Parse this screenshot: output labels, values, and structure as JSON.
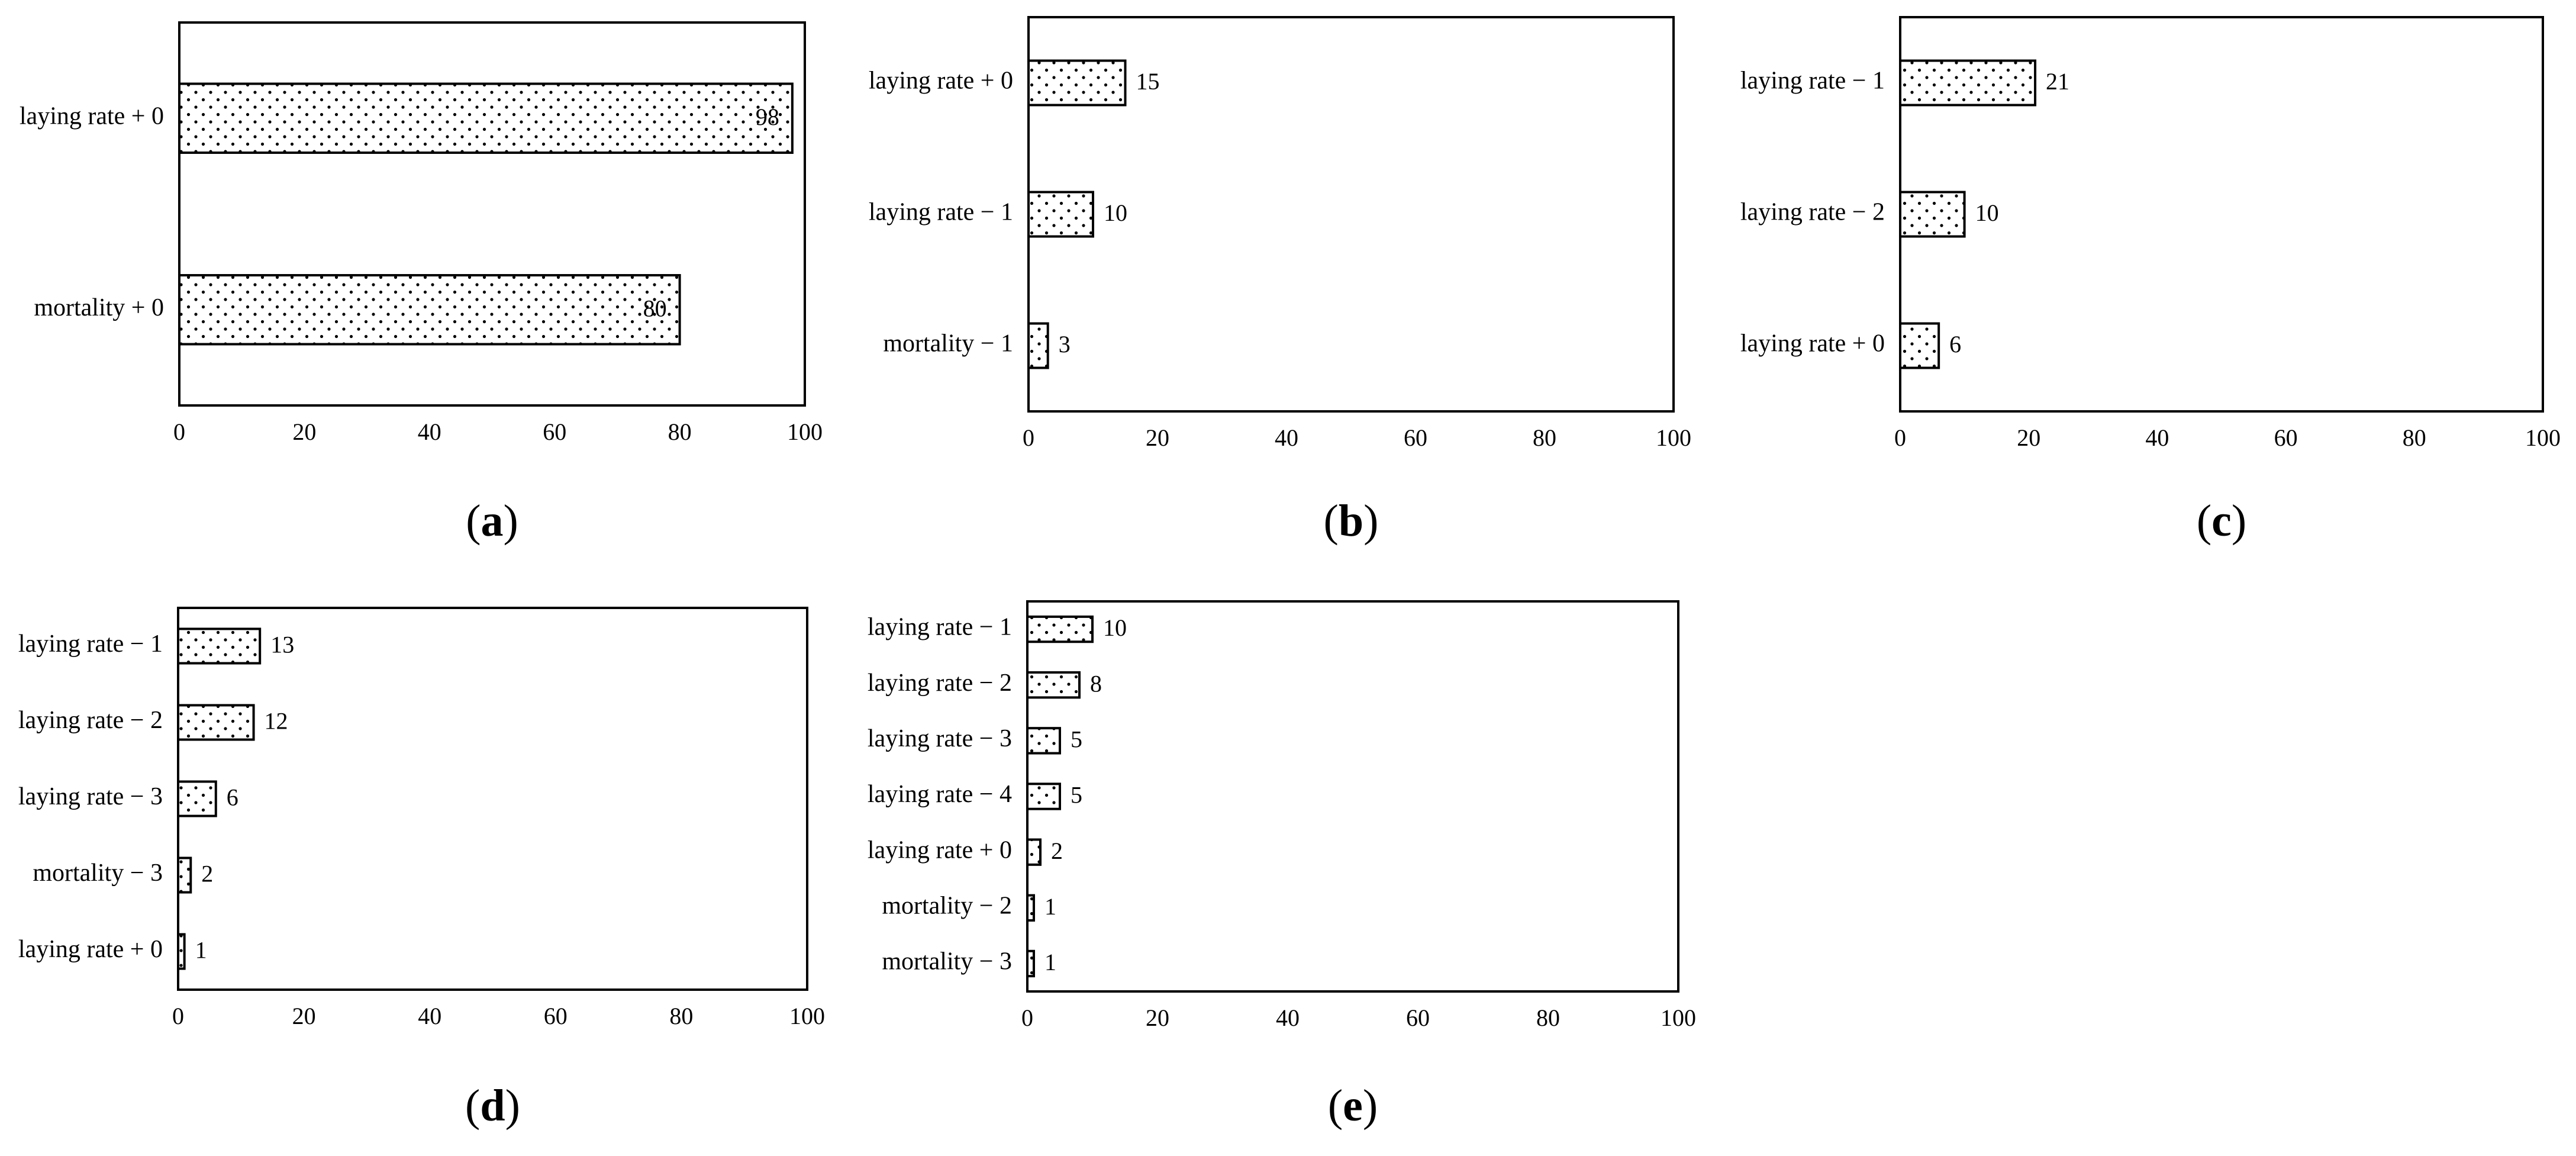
{
  "chart_data": [
    {
      "type": "bar",
      "orientation": "horizontal",
      "panel": "a",
      "categories": [
        "laying rate + 0",
        "mortality + 0"
      ],
      "values": [
        98,
        80
      ],
      "xlim": [
        0,
        100
      ],
      "xticks": [
        0,
        20,
        40,
        60,
        80,
        100
      ],
      "value_labels": "inside-end",
      "title": "",
      "xlabel": "",
      "ylabel": "",
      "grid": false
    },
    {
      "type": "bar",
      "orientation": "horizontal",
      "panel": "b",
      "categories": [
        "laying rate + 0",
        "laying rate − 1",
        "mortality − 1"
      ],
      "values": [
        15,
        10,
        3
      ],
      "xlim": [
        0,
        100
      ],
      "xticks": [
        0,
        20,
        40,
        60,
        80,
        100
      ],
      "value_labels": "outside-end",
      "title": "",
      "xlabel": "",
      "ylabel": "",
      "grid": false
    },
    {
      "type": "bar",
      "orientation": "horizontal",
      "panel": "c",
      "categories": [
        "laying rate − 1",
        "laying rate − 2",
        "laying rate + 0"
      ],
      "values": [
        21,
        10,
        6
      ],
      "xlim": [
        0,
        100
      ],
      "xticks": [
        0,
        20,
        40,
        60,
        80,
        100
      ],
      "value_labels": "outside-end",
      "title": "",
      "xlabel": "",
      "ylabel": "",
      "grid": false
    },
    {
      "type": "bar",
      "orientation": "horizontal",
      "panel": "d",
      "categories": [
        "laying rate − 1",
        "laying rate − 2",
        "laying rate − 3",
        "mortality − 3",
        "laying rate + 0"
      ],
      "values": [
        13,
        12,
        6,
        2,
        1
      ],
      "xlim": [
        0,
        100
      ],
      "xticks": [
        0,
        20,
        40,
        60,
        80,
        100
      ],
      "value_labels": "outside-end",
      "title": "",
      "xlabel": "",
      "ylabel": "",
      "grid": false
    },
    {
      "type": "bar",
      "orientation": "horizontal",
      "panel": "e",
      "categories": [
        "laying rate − 1",
        "laying rate − 2",
        "laying rate − 3",
        "laying rate − 4",
        "laying rate + 0",
        "mortality − 2",
        "mortality − 3"
      ],
      "values": [
        10,
        8,
        5,
        5,
        2,
        1,
        1
      ],
      "xlim": [
        0,
        100
      ],
      "xticks": [
        0,
        20,
        40,
        60,
        80,
        100
      ],
      "value_labels": "outside-end",
      "title": "",
      "xlabel": "",
      "ylabel": "",
      "grid": false
    }
  ],
  "style": {
    "bar_pattern": "dotted",
    "bar_fill": "#ffffff",
    "dot_color": "#000000",
    "frame_color": "#000000"
  }
}
